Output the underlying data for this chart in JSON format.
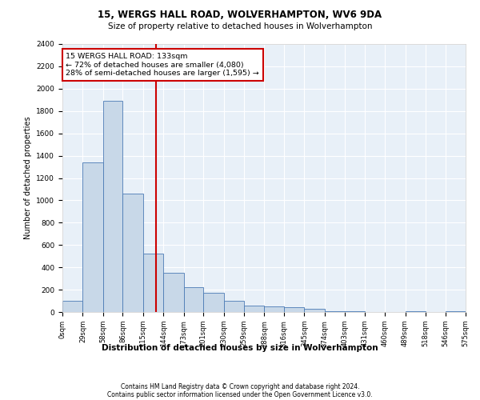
{
  "title1": "15, WERGS HALL ROAD, WOLVERHAMPTON, WV6 9DA",
  "title2": "Size of property relative to detached houses in Wolverhampton",
  "xlabel": "Distribution of detached houses by size in Wolverhampton",
  "ylabel": "Number of detached properties",
  "annotation_title": "15 WERGS HALL ROAD: 133sqm",
  "annotation_line1": "← 72% of detached houses are smaller (4,080)",
  "annotation_line2": "28% of semi-detached houses are larger (1,595) →",
  "property_line_x": 133,
  "bin_edges": [
    0,
    29,
    58,
    86,
    115,
    144,
    173,
    201,
    230,
    259,
    288,
    316,
    345,
    374,
    403,
    431,
    460,
    489,
    518,
    546,
    575
  ],
  "bar_heights": [
    100,
    1340,
    1890,
    1060,
    520,
    350,
    220,
    170,
    100,
    60,
    50,
    45,
    30,
    5,
    5,
    0,
    0,
    10,
    0,
    5
  ],
  "bar_color": "#c8d8e8",
  "bar_edge_color": "#4a7ab5",
  "vline_color": "#cc0000",
  "background_color": "#e8f0f8",
  "grid_color": "#ffffff",
  "ylim": [
    0,
    2400
  ],
  "yticks": [
    0,
    200,
    400,
    600,
    800,
    1000,
    1200,
    1400,
    1600,
    1800,
    2000,
    2200,
    2400
  ],
  "footer1": "Contains HM Land Registry data © Crown copyright and database right 2024.",
  "footer2": "Contains public sector information licensed under the Open Government Licence v3.0."
}
